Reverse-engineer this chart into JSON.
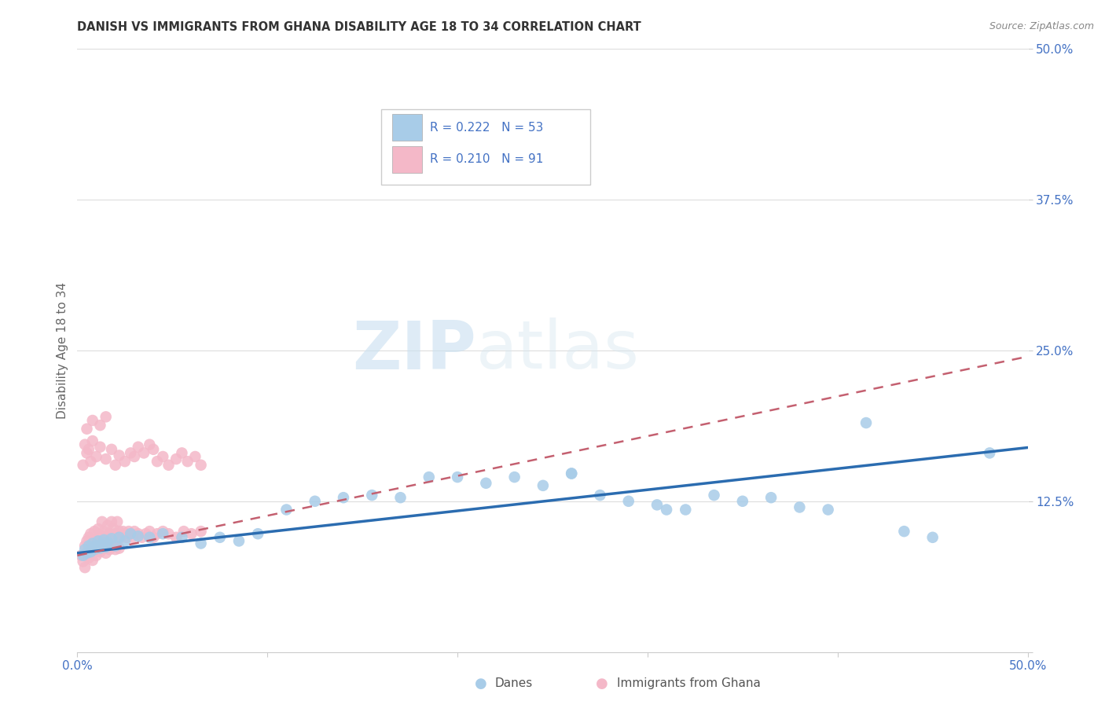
{
  "title": "DANISH VS IMMIGRANTS FROM GHANA DISABILITY AGE 18 TO 34 CORRELATION CHART",
  "source": "Source: ZipAtlas.com",
  "ylabel": "Disability Age 18 to 34",
  "xlim": [
    0.0,
    0.5
  ],
  "ylim": [
    0.0,
    0.5
  ],
  "danes_R": 0.222,
  "danes_N": 53,
  "ghana_R": 0.21,
  "ghana_N": 91,
  "legend_label_danes": "Danes",
  "legend_label_ghana": "Immigrants from Ghana",
  "danes_color": "#a8cce8",
  "ghana_color": "#f4b8c8",
  "danes_line_color": "#2b6cb0",
  "ghana_line_color": "#c46070",
  "watermark_zip": "ZIP",
  "watermark_atlas": "atlas",
  "danes_x": [
    0.003,
    0.004,
    0.005,
    0.006,
    0.007,
    0.008,
    0.009,
    0.01,
    0.011,
    0.012,
    0.013,
    0.014,
    0.015,
    0.016,
    0.018,
    0.02,
    0.022,
    0.025,
    0.028,
    0.032,
    0.038,
    0.045,
    0.055,
    0.065,
    0.075,
    0.085,
    0.095,
    0.11,
    0.125,
    0.14,
    0.155,
    0.17,
    0.185,
    0.2,
    0.215,
    0.23,
    0.245,
    0.26,
    0.275,
    0.29,
    0.305,
    0.32,
    0.335,
    0.35,
    0.365,
    0.38,
    0.395,
    0.415,
    0.435,
    0.45,
    0.26,
    0.31,
    0.48
  ],
  "danes_y": [
    0.08,
    0.085,
    0.082,
    0.088,
    0.083,
    0.09,
    0.085,
    0.088,
    0.092,
    0.086,
    0.089,
    0.093,
    0.087,
    0.091,
    0.094,
    0.088,
    0.095,
    0.092,
    0.098,
    0.096,
    0.095,
    0.098,
    0.095,
    0.09,
    0.095,
    0.092,
    0.098,
    0.118,
    0.125,
    0.128,
    0.13,
    0.128,
    0.145,
    0.145,
    0.14,
    0.145,
    0.138,
    0.148,
    0.13,
    0.125,
    0.122,
    0.118,
    0.13,
    0.125,
    0.128,
    0.12,
    0.118,
    0.19,
    0.1,
    0.095,
    0.148,
    0.118,
    0.165
  ],
  "ghana_x": [
    0.002,
    0.003,
    0.004,
    0.004,
    0.005,
    0.005,
    0.006,
    0.006,
    0.007,
    0.007,
    0.008,
    0.008,
    0.009,
    0.009,
    0.01,
    0.01,
    0.011,
    0.011,
    0.012,
    0.012,
    0.013,
    0.013,
    0.014,
    0.014,
    0.015,
    0.015,
    0.016,
    0.016,
    0.017,
    0.017,
    0.018,
    0.018,
    0.019,
    0.019,
    0.02,
    0.02,
    0.021,
    0.021,
    0.022,
    0.022,
    0.023,
    0.024,
    0.025,
    0.026,
    0.027,
    0.028,
    0.029,
    0.03,
    0.032,
    0.034,
    0.036,
    0.038,
    0.04,
    0.042,
    0.045,
    0.048,
    0.052,
    0.056,
    0.06,
    0.065,
    0.003,
    0.005,
    0.007,
    0.004,
    0.006,
    0.008,
    0.01,
    0.012,
    0.015,
    0.018,
    0.02,
    0.022,
    0.025,
    0.028,
    0.03,
    0.032,
    0.035,
    0.038,
    0.04,
    0.042,
    0.045,
    0.048,
    0.052,
    0.055,
    0.058,
    0.062,
    0.065,
    0.005,
    0.008,
    0.012,
    0.015
  ],
  "ghana_y": [
    0.08,
    0.075,
    0.07,
    0.088,
    0.082,
    0.092,
    0.078,
    0.095,
    0.083,
    0.098,
    0.076,
    0.09,
    0.085,
    0.1,
    0.08,
    0.093,
    0.088,
    0.102,
    0.083,
    0.097,
    0.092,
    0.108,
    0.086,
    0.1,
    0.082,
    0.096,
    0.09,
    0.105,
    0.085,
    0.098,
    0.092,
    0.108,
    0.088,
    0.102,
    0.085,
    0.098,
    0.092,
    0.108,
    0.086,
    0.1,
    0.095,
    0.1,
    0.098,
    0.095,
    0.1,
    0.098,
    0.095,
    0.1,
    0.098,
    0.095,
    0.098,
    0.1,
    0.095,
    0.098,
    0.1,
    0.098,
    0.095,
    0.1,
    0.098,
    0.1,
    0.155,
    0.165,
    0.158,
    0.172,
    0.168,
    0.175,
    0.162,
    0.17,
    0.16,
    0.168,
    0.155,
    0.163,
    0.158,
    0.165,
    0.162,
    0.17,
    0.165,
    0.172,
    0.168,
    0.158,
    0.162,
    0.155,
    0.16,
    0.165,
    0.158,
    0.162,
    0.155,
    0.185,
    0.192,
    0.188,
    0.195
  ]
}
